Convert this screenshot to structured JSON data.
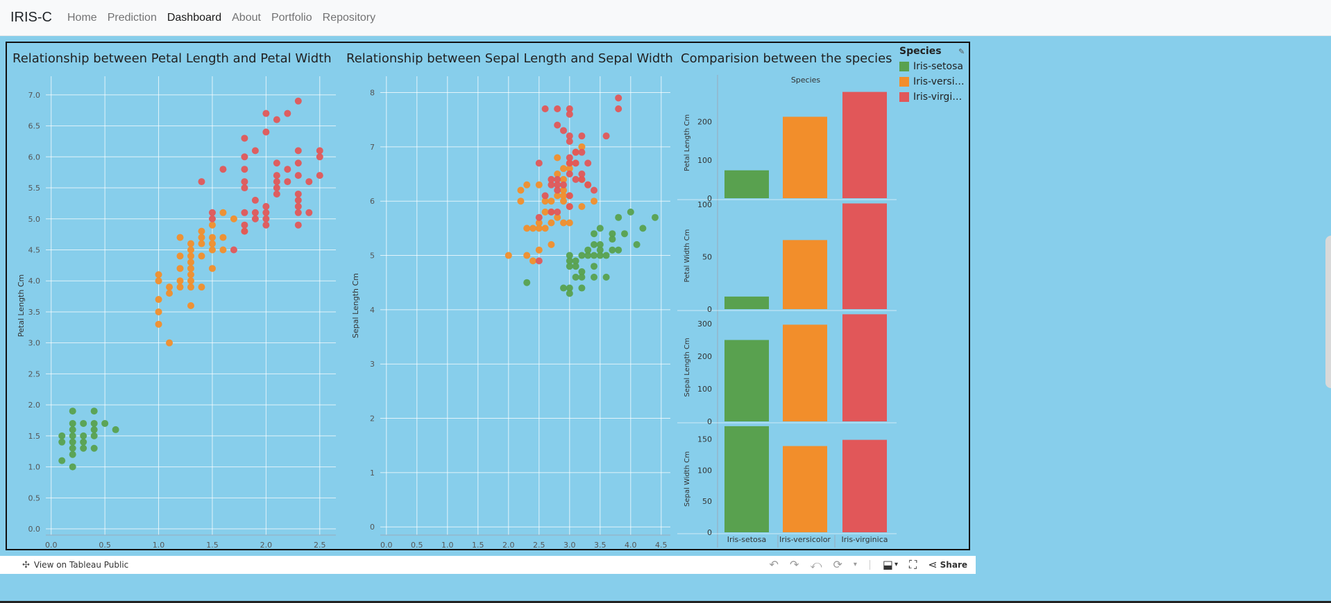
{
  "navbar": {
    "brand": "IRIS-C",
    "links": [
      {
        "label": "Home"
      },
      {
        "label": "Prediction"
      },
      {
        "label": "Dashboard",
        "active": true
      },
      {
        "label": "About"
      },
      {
        "label": "Portfolio"
      },
      {
        "label": "Repository"
      }
    ]
  },
  "legend": {
    "title": "Species",
    "items": [
      {
        "label": "Iris-setosa",
        "color": "#59A14F"
      },
      {
        "label": "Iris-versi…",
        "color": "#F28E2B"
      },
      {
        "label": "Iris-virgi…",
        "color": "#E15759"
      }
    ]
  },
  "colors": {
    "background": "#87CEEB",
    "setosa": "#59A14F",
    "versicolor": "#F28E2B",
    "virginica": "#E15759"
  },
  "toolbar": {
    "view_label": "View on Tableau Public",
    "share_label": "Share"
  },
  "chart_data": [
    {
      "type": "scatter",
      "title": "Relationship between Petal Length and Petal Width",
      "xlabel": "Petal Width Cm",
      "ylabel": "Petal Length Cm",
      "xlim": [
        -0.05,
        2.65
      ],
      "ylim": [
        -0.1,
        7.3
      ],
      "xticks": [
        "0.0",
        "0.5",
        "1.0",
        "1.5",
        "2.0",
        "2.5"
      ],
      "yticks": [
        "0.0",
        "0.5",
        "1.0",
        "1.5",
        "2.0",
        "2.5",
        "3.0",
        "3.5",
        "4.0",
        "4.5",
        "5.0",
        "5.5",
        "6.0",
        "6.5",
        "7.0"
      ],
      "series": [
        {
          "name": "Iris-setosa",
          "points": [
            [
              0.1,
              1.1
            ],
            [
              0.1,
              1.4
            ],
            [
              0.1,
              1.5
            ],
            [
              0.2,
              1.0
            ],
            [
              0.2,
              1.2
            ],
            [
              0.2,
              1.3
            ],
            [
              0.2,
              1.4
            ],
            [
              0.2,
              1.5
            ],
            [
              0.2,
              1.6
            ],
            [
              0.2,
              1.7
            ],
            [
              0.2,
              1.9
            ],
            [
              0.3,
              1.3
            ],
            [
              0.3,
              1.4
            ],
            [
              0.3,
              1.5
            ],
            [
              0.3,
              1.7
            ],
            [
              0.4,
              1.3
            ],
            [
              0.4,
              1.5
            ],
            [
              0.4,
              1.6
            ],
            [
              0.4,
              1.7
            ],
            [
              0.4,
              1.9
            ],
            [
              0.5,
              1.7
            ],
            [
              0.6,
              1.6
            ]
          ]
        },
        {
          "name": "Iris-versicolor",
          "points": [
            [
              1.0,
              3.3
            ],
            [
              1.0,
              3.5
            ],
            [
              1.0,
              3.7
            ],
            [
              1.0,
              4.0
            ],
            [
              1.0,
              4.1
            ],
            [
              1.1,
              3.0
            ],
            [
              1.1,
              3.8
            ],
            [
              1.1,
              3.9
            ],
            [
              1.2,
              3.9
            ],
            [
              1.2,
              4.0
            ],
            [
              1.2,
              4.2
            ],
            [
              1.2,
              4.4
            ],
            [
              1.2,
              4.7
            ],
            [
              1.3,
              3.6
            ],
            [
              1.3,
              3.9
            ],
            [
              1.3,
              4.0
            ],
            [
              1.3,
              4.1
            ],
            [
              1.3,
              4.2
            ],
            [
              1.3,
              4.3
            ],
            [
              1.3,
              4.4
            ],
            [
              1.3,
              4.5
            ],
            [
              1.3,
              4.6
            ],
            [
              1.4,
              3.9
            ],
            [
              1.4,
              4.4
            ],
            [
              1.4,
              4.6
            ],
            [
              1.4,
              4.7
            ],
            [
              1.4,
              4.8
            ],
            [
              1.5,
              4.2
            ],
            [
              1.5,
              4.5
            ],
            [
              1.5,
              4.6
            ],
            [
              1.5,
              4.7
            ],
            [
              1.5,
              4.9
            ],
            [
              1.6,
              4.5
            ],
            [
              1.6,
              4.7
            ],
            [
              1.6,
              5.1
            ],
            [
              1.7,
              5.0
            ],
            [
              1.8,
              4.8
            ]
          ]
        },
        {
          "name": "Iris-virginica",
          "points": [
            [
              1.4,
              5.6
            ],
            [
              1.5,
              5.0
            ],
            [
              1.5,
              5.1
            ],
            [
              1.6,
              5.8
            ],
            [
              1.7,
              4.5
            ],
            [
              1.8,
              4.8
            ],
            [
              1.8,
              4.9
            ],
            [
              1.8,
              5.1
            ],
            [
              1.8,
              5.5
            ],
            [
              1.8,
              5.6
            ],
            [
              1.8,
              5.8
            ],
            [
              1.8,
              6.0
            ],
            [
              1.8,
              6.3
            ],
            [
              1.9,
              5.0
            ],
            [
              1.9,
              5.1
            ],
            [
              1.9,
              5.3
            ],
            [
              1.9,
              6.1
            ],
            [
              2.0,
              4.9
            ],
            [
              2.0,
              5.0
            ],
            [
              2.0,
              5.1
            ],
            [
              2.0,
              5.2
            ],
            [
              2.0,
              6.4
            ],
            [
              2.0,
              6.7
            ],
            [
              2.1,
              5.4
            ],
            [
              2.1,
              5.5
            ],
            [
              2.1,
              5.6
            ],
            [
              2.1,
              5.7
            ],
            [
              2.1,
              5.9
            ],
            [
              2.1,
              6.6
            ],
            [
              2.2,
              5.6
            ],
            [
              2.2,
              5.8
            ],
            [
              2.2,
              6.7
            ],
            [
              2.3,
              4.9
            ],
            [
              2.3,
              5.1
            ],
            [
              2.3,
              5.2
            ],
            [
              2.3,
              5.3
            ],
            [
              2.3,
              5.4
            ],
            [
              2.3,
              5.7
            ],
            [
              2.3,
              5.9
            ],
            [
              2.3,
              6.1
            ],
            [
              2.3,
              6.9
            ],
            [
              2.4,
              5.1
            ],
            [
              2.4,
              5.6
            ],
            [
              2.5,
              5.7
            ],
            [
              2.5,
              6.0
            ],
            [
              2.5,
              6.1
            ]
          ]
        }
      ]
    },
    {
      "type": "scatter",
      "title": "Relationship between Sepal Length and Sepal Width",
      "xlabel": "Sepal Width Cm",
      "ylabel": "Sepal Length Cm",
      "xlim": [
        -0.1,
        4.65
      ],
      "ylim": [
        -0.15,
        8.3
      ],
      "xticks": [
        "0.0",
        "0.5",
        "1.0",
        "1.5",
        "2.0",
        "2.5",
        "3.0",
        "3.5",
        "4.0",
        "4.5"
      ],
      "yticks": [
        "0",
        "1",
        "2",
        "3",
        "4",
        "5",
        "6",
        "7",
        "8"
      ],
      "series": [
        {
          "name": "Iris-setosa",
          "points": [
            [
              2.3,
              4.5
            ],
            [
              2.9,
              4.4
            ],
            [
              3.0,
              4.3
            ],
            [
              3.0,
              4.4
            ],
            [
              3.0,
              4.8
            ],
            [
              3.0,
              4.9
            ],
            [
              3.0,
              5.0
            ],
            [
              3.1,
              4.6
            ],
            [
              3.1,
              4.8
            ],
            [
              3.1,
              4.9
            ],
            [
              3.2,
              4.4
            ],
            [
              3.2,
              4.6
            ],
            [
              3.2,
              4.7
            ],
            [
              3.2,
              5.0
            ],
            [
              3.3,
              5.0
            ],
            [
              3.3,
              5.1
            ],
            [
              3.4,
              4.6
            ],
            [
              3.4,
              4.8
            ],
            [
              3.4,
              5.0
            ],
            [
              3.4,
              5.2
            ],
            [
              3.4,
              5.4
            ],
            [
              3.5,
              5.0
            ],
            [
              3.5,
              5.1
            ],
            [
              3.5,
              5.2
            ],
            [
              3.5,
              5.5
            ],
            [
              3.6,
              4.6
            ],
            [
              3.6,
              5.0
            ],
            [
              3.7,
              5.1
            ],
            [
              3.7,
              5.3
            ],
            [
              3.7,
              5.4
            ],
            [
              3.8,
              5.1
            ],
            [
              3.8,
              5.7
            ],
            [
              3.9,
              5.4
            ],
            [
              4.0,
              5.8
            ],
            [
              4.1,
              5.2
            ],
            [
              4.2,
              5.5
            ],
            [
              4.4,
              5.7
            ]
          ]
        },
        {
          "name": "Iris-versicolor",
          "points": [
            [
              2.0,
              5.0
            ],
            [
              2.2,
              6.0
            ],
            [
              2.2,
              6.2
            ],
            [
              2.3,
              5.0
            ],
            [
              2.3,
              5.5
            ],
            [
              2.3,
              6.3
            ],
            [
              2.4,
              4.9
            ],
            [
              2.4,
              5.5
            ],
            [
              2.5,
              5.1
            ],
            [
              2.5,
              5.5
            ],
            [
              2.5,
              5.6
            ],
            [
              2.5,
              6.3
            ],
            [
              2.6,
              5.5
            ],
            [
              2.6,
              5.8
            ],
            [
              2.6,
              6.0
            ],
            [
              2.7,
              5.2
            ],
            [
              2.7,
              5.6
            ],
            [
              2.7,
              5.8
            ],
            [
              2.7,
              6.0
            ],
            [
              2.8,
              5.7
            ],
            [
              2.8,
              6.1
            ],
            [
              2.8,
              6.5
            ],
            [
              2.8,
              6.8
            ],
            [
              2.9,
              5.6
            ],
            [
              2.9,
              6.0
            ],
            [
              2.9,
              6.1
            ],
            [
              2.9,
              6.2
            ],
            [
              2.9,
              6.4
            ],
            [
              2.9,
              6.6
            ],
            [
              3.0,
              5.6
            ],
            [
              3.0,
              5.9
            ],
            [
              3.0,
              6.1
            ],
            [
              3.0,
              6.6
            ],
            [
              3.0,
              6.7
            ],
            [
              3.1,
              6.7
            ],
            [
              3.1,
              6.9
            ],
            [
              3.2,
              5.9
            ],
            [
              3.2,
              6.4
            ],
            [
              3.2,
              7.0
            ],
            [
              3.3,
              6.3
            ],
            [
              3.4,
              6.0
            ]
          ]
        },
        {
          "name": "Iris-virginica",
          "points": [
            [
              2.5,
              4.9
            ],
            [
              2.5,
              5.7
            ],
            [
              2.5,
              6.7
            ],
            [
              2.6,
              6.1
            ],
            [
              2.6,
              7.7
            ],
            [
              2.7,
              5.8
            ],
            [
              2.7,
              6.3
            ],
            [
              2.7,
              6.4
            ],
            [
              2.8,
              5.8
            ],
            [
              2.8,
              6.2
            ],
            [
              2.8,
              6.3
            ],
            [
              2.8,
              6.4
            ],
            [
              2.8,
              7.4
            ],
            [
              2.8,
              7.7
            ],
            [
              2.9,
              6.3
            ],
            [
              2.9,
              7.3
            ],
            [
              3.0,
              5.9
            ],
            [
              3.0,
              6.1
            ],
            [
              3.0,
              6.5
            ],
            [
              3.0,
              6.7
            ],
            [
              3.0,
              6.8
            ],
            [
              3.0,
              7.1
            ],
            [
              3.0,
              7.2
            ],
            [
              3.0,
              7.6
            ],
            [
              3.0,
              7.7
            ],
            [
              3.1,
              6.4
            ],
            [
              3.1,
              6.7
            ],
            [
              3.1,
              6.9
            ],
            [
              3.2,
              6.4
            ],
            [
              3.2,
              6.5
            ],
            [
              3.2,
              6.9
            ],
            [
              3.2,
              7.2
            ],
            [
              3.3,
              6.3
            ],
            [
              3.3,
              6.7
            ],
            [
              3.4,
              6.2
            ],
            [
              3.6,
              7.2
            ],
            [
              3.8,
              7.7
            ],
            [
              3.8,
              7.9
            ]
          ]
        }
      ]
    },
    {
      "type": "bar",
      "title": "Comparision between the species",
      "column_header": "Species",
      "categories": [
        "Iris-setosa",
        "Iris-versicolor",
        "Iris-virginica"
      ],
      "panels": [
        {
          "ylabel": "Petal Length Cm",
          "ylim": [
            0,
            290
          ],
          "yticks": [
            0,
            100,
            200
          ],
          "values": [
            73,
            213,
            278
          ]
        },
        {
          "ylabel": "Petal Width Cm",
          "ylim": [
            0,
            102
          ],
          "yticks": [
            0,
            50,
            100
          ],
          "values": [
            12,
            66,
            101
          ]
        },
        {
          "ylabel": "Sepal Length Cm",
          "ylim": [
            0,
            332
          ],
          "yticks": [
            0,
            100,
            200,
            300
          ],
          "values": [
            250,
            297,
            329
          ]
        },
        {
          "ylabel": "Sepal Width Cm",
          "ylim": [
            0,
            172
          ],
          "yticks": [
            0,
            50,
            100,
            150
          ],
          "values": [
            171,
            139,
            149
          ]
        }
      ]
    }
  ]
}
